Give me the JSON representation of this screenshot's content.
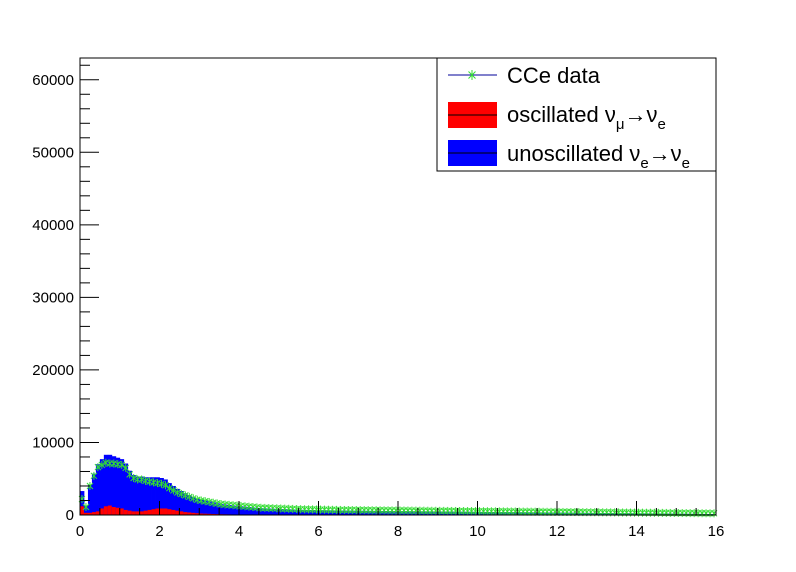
{
  "chart_data": {
    "type": "bar",
    "title": "",
    "xlabel": "",
    "ylabel": "",
    "xlim": [
      0,
      16
    ],
    "ylim": [
      0,
      63000
    ],
    "grid": false,
    "legend_position": "top-right",
    "x_ticks": [
      "0",
      "2",
      "4",
      "6",
      "8",
      "10",
      "12",
      "14",
      "16"
    ],
    "y_ticks": [
      "0",
      "10000",
      "20000",
      "30000",
      "40000",
      "50000",
      "60000"
    ],
    "bin_width": 0.1,
    "series": [
      {
        "name_parts": [
          "oscillated ",
          "ν",
          "μ",
          "→",
          "ν",
          "e"
        ],
        "style": "filled-hist",
        "color": "#ff0000",
        "values": [
          1200,
          300,
          300,
          400,
          500,
          900,
          1200,
          1300,
          1100,
          1000,
          900,
          700,
          600,
          500,
          500,
          500,
          600,
          700,
          800,
          900,
          900,
          900,
          800,
          700,
          600,
          500,
          400,
          350,
          300,
          250,
          200,
          180,
          160,
          140,
          120,
          100,
          90,
          80,
          70,
          60,
          55,
          50,
          45,
          40,
          35,
          30,
          28,
          26,
          24,
          22,
          20,
          18,
          16,
          15,
          14,
          13,
          12,
          11,
          10,
          10,
          9,
          9,
          8,
          8,
          7,
          7,
          6,
          6,
          5,
          5,
          5,
          5,
          4,
          4,
          4,
          4,
          3,
          3,
          3,
          3,
          3,
          3,
          3,
          3,
          2,
          2,
          2,
          2,
          2,
          2,
          2,
          2,
          2,
          2,
          2,
          2,
          2,
          2,
          2,
          2,
          2,
          2,
          2,
          2,
          1,
          1,
          1,
          1,
          1,
          1,
          1,
          1,
          1,
          1,
          1,
          1,
          1,
          1,
          1,
          1,
          1,
          1,
          1,
          1,
          1,
          1,
          1,
          1,
          1,
          1,
          1,
          1,
          1,
          1,
          1,
          1,
          1,
          1,
          1,
          1,
          1,
          1,
          1,
          1,
          1,
          1,
          1,
          1,
          1,
          1,
          1,
          1,
          1,
          1,
          1,
          1,
          1,
          1,
          1,
          1
        ]
      },
      {
        "name_parts": [
          "unoscillated ",
          "ν",
          "e",
          "→",
          "ν",
          "e"
        ],
        "style": "filled-hist-stacked",
        "color": "#0000ff",
        "values": [
          2100,
          1000,
          3900,
          5300,
          6500,
          6800,
          7100,
          7000,
          7000,
          6900,
          6800,
          6400,
          5500,
          5000,
          4800,
          4800,
          4600,
          4500,
          4400,
          4300,
          4200,
          4000,
          3600,
          3300,
          3000,
          2800,
          2600,
          2400,
          2200,
          2000,
          1900,
          1800,
          1700,
          1600,
          1500,
          1400,
          1350,
          1300,
          1250,
          1200,
          1150,
          1100,
          1050,
          1000,
          950,
          900,
          880,
          860,
          840,
          820,
          800,
          780,
          760,
          740,
          720,
          700,
          690,
          680,
          670,
          660,
          650,
          640,
          630,
          620,
          610,
          600,
          595,
          590,
          585,
          580,
          575,
          570,
          565,
          560,
          555,
          550,
          545,
          540,
          535,
          530,
          525,
          520,
          515,
          510,
          505,
          500,
          495,
          490,
          485,
          480,
          475,
          470,
          465,
          460,
          455,
          450,
          445,
          440,
          435,
          430,
          425,
          420,
          415,
          410,
          405,
          400,
          395,
          390,
          385,
          380,
          375,
          370,
          365,
          360,
          355,
          350,
          345,
          340,
          335,
          330,
          325,
          320,
          315,
          310,
          305,
          300,
          295,
          290,
          285,
          280,
          275,
          270,
          265,
          260,
          255,
          250,
          245,
          240,
          235,
          230,
          225,
          220,
          215,
          210,
          205,
          200,
          195,
          190,
          185,
          180,
          175,
          170,
          165,
          160,
          155,
          150,
          145,
          140,
          135,
          130
        ]
      },
      {
        "name_parts": [
          "CCe data"
        ],
        "style": "markers",
        "color": "#33dd33",
        "line_color": "#000099",
        "values": [
          2200,
          1100,
          4000,
          5400,
          6600,
          6900,
          7200,
          7100,
          7100,
          7000,
          6900,
          6500,
          5600,
          5100,
          4900,
          4900,
          4700,
          4600,
          4500,
          4400,
          4300,
          4100,
          3700,
          3400,
          3100,
          2900,
          2700,
          2500,
          2300,
          2100,
          2000,
          1900,
          1800,
          1700,
          1600,
          1500,
          1450,
          1400,
          1350,
          1300,
          1250,
          1200,
          1150,
          1100,
          1050,
          1000,
          980,
          960,
          940,
          920,
          900,
          880,
          860,
          840,
          820,
          800,
          790,
          780,
          770,
          760,
          750,
          740,
          730,
          720,
          710,
          700,
          695,
          690,
          685,
          680,
          675,
          670,
          665,
          660,
          655,
          650,
          645,
          640,
          635,
          630,
          625,
          620,
          615,
          610,
          605,
          600,
          595,
          590,
          585,
          580,
          575,
          570,
          565,
          560,
          555,
          550,
          545,
          540,
          535,
          530,
          525,
          520,
          515,
          510,
          505,
          500,
          495,
          490,
          485,
          480,
          475,
          470,
          465,
          460,
          455,
          450,
          445,
          440,
          435,
          430,
          425,
          420,
          415,
          410,
          405,
          400,
          395,
          390,
          385,
          380,
          375,
          370,
          365,
          360,
          355,
          350,
          345,
          340,
          335,
          330,
          325,
          320,
          315,
          310,
          305,
          300,
          295,
          290,
          285,
          280,
          275,
          270,
          265,
          260,
          255,
          250,
          245,
          240,
          235,
          230
        ]
      }
    ]
  }
}
